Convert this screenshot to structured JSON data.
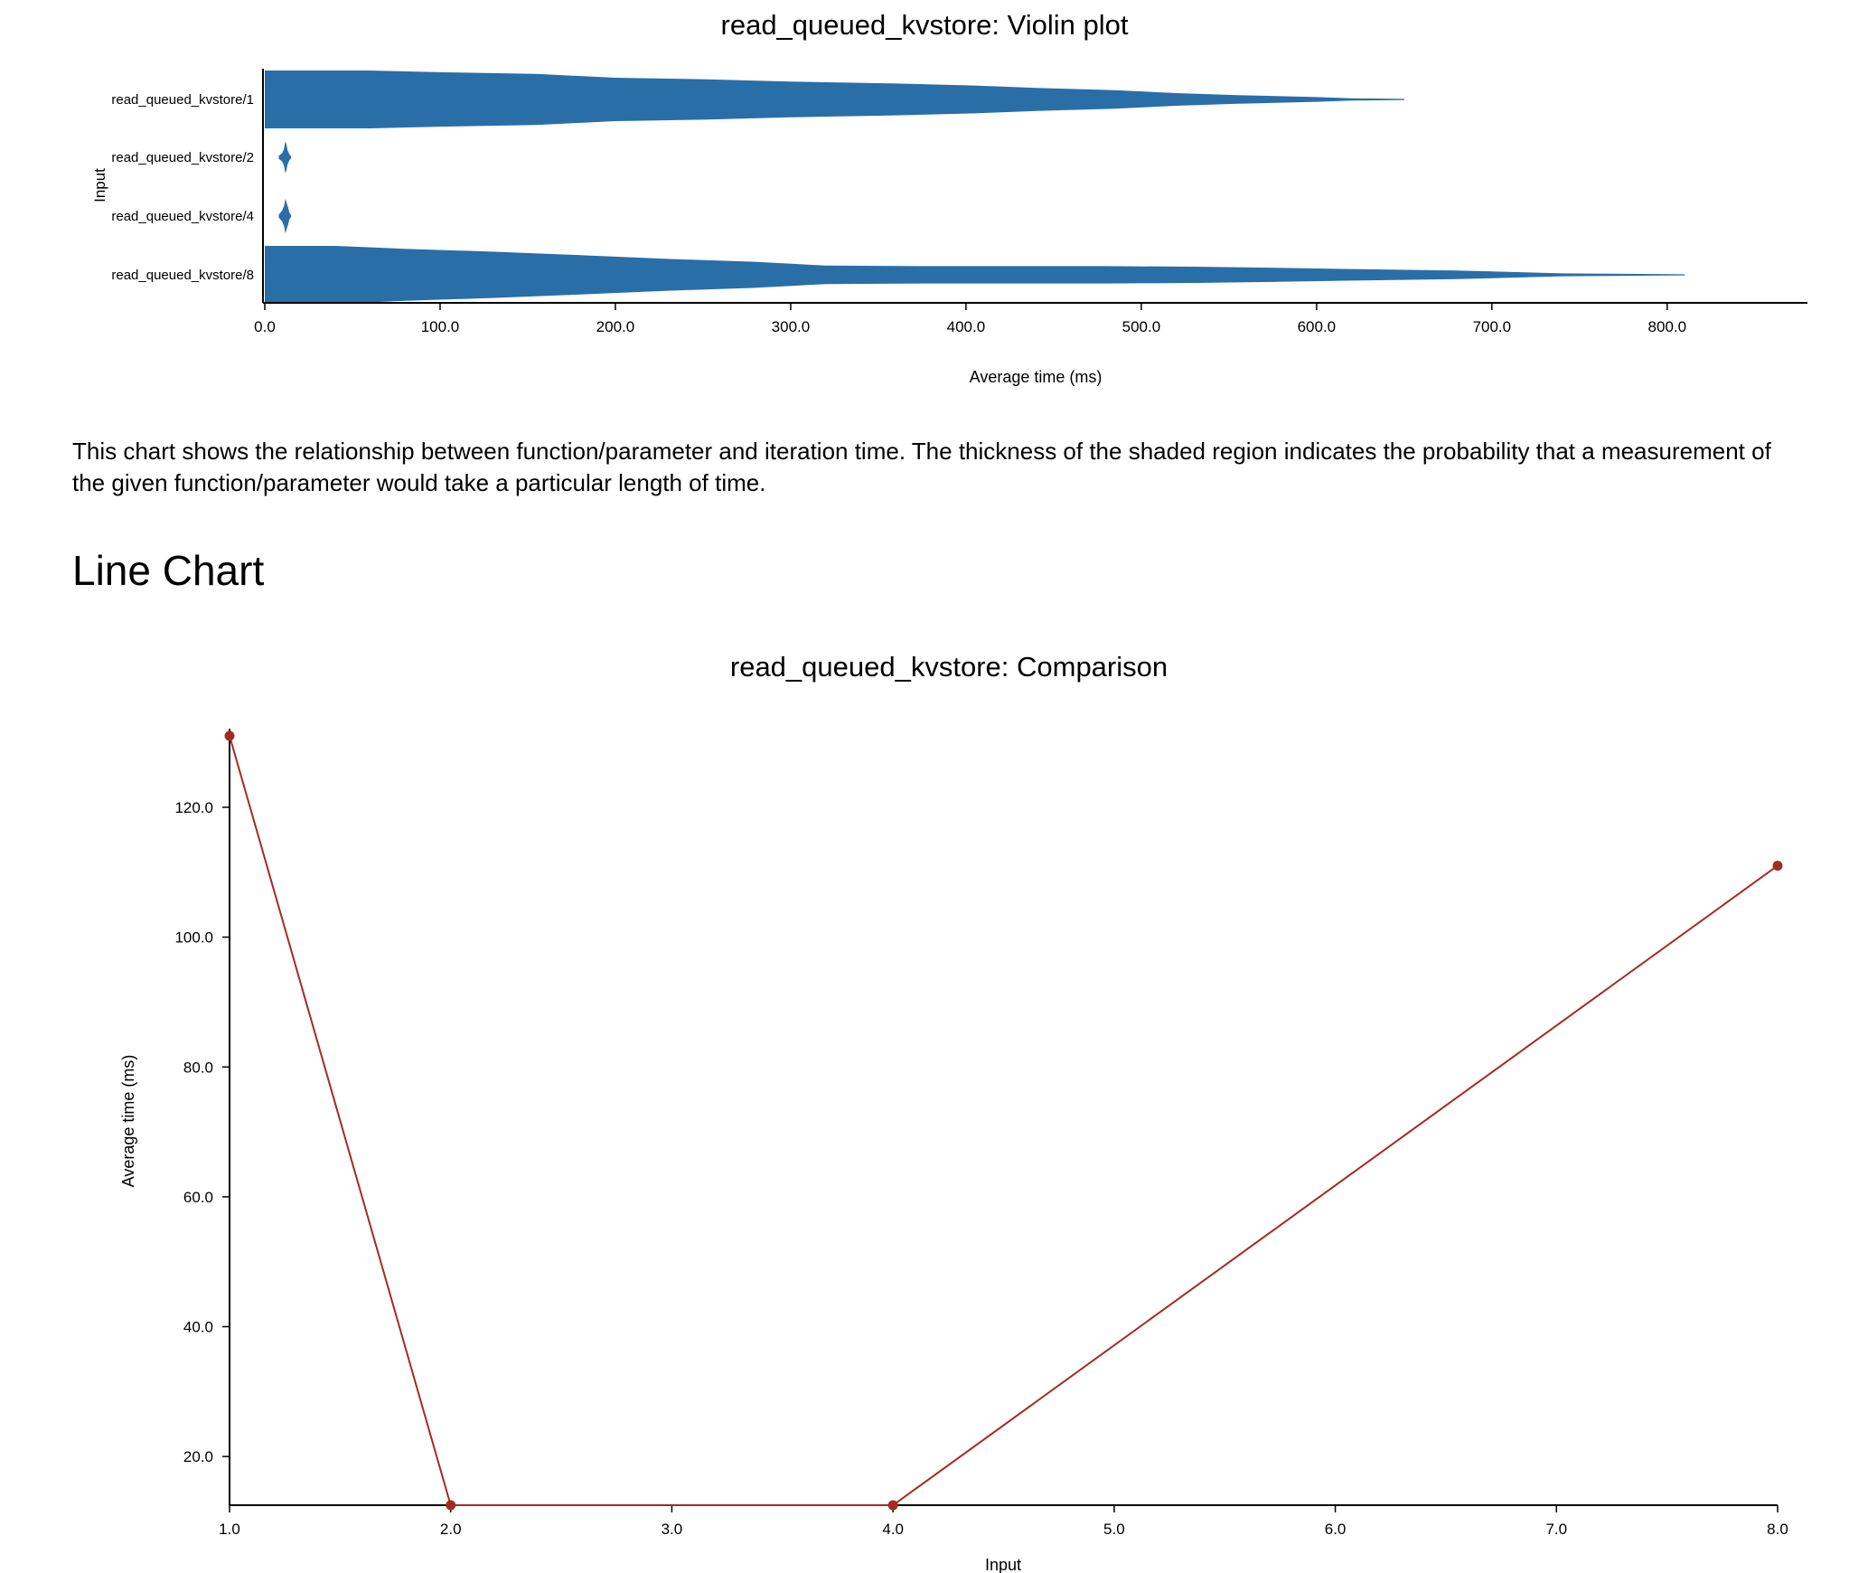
{
  "description": "This chart shows the relationship between function/parameter and iteration time. The thickness of the shaded region indicates the probability that a measurement of the given function/parameter would take a particular length of time.",
  "section_title": "Line Chart",
  "colors": {
    "violin": "#2a6ea8",
    "line": "#a52a22",
    "axis": "#000000"
  },
  "chart_data": [
    {
      "type": "violin",
      "orientation": "horizontal",
      "title": "read_queued_kvstore: Violin plot",
      "xlabel": "Average time (ms)",
      "ylabel": "Input",
      "xlim": [
        0,
        880
      ],
      "xticks": [
        "0.0",
        "100.0",
        "200.0",
        "300.0",
        "400.0",
        "500.0",
        "600.0",
        "700.0",
        "800.0"
      ],
      "grid": false,
      "categories": [
        "read_queued_kvstore/1",
        "read_queued_kvstore/2",
        "read_queued_kvstore/4",
        "read_queued_kvstore/8"
      ],
      "series": [
        {
          "category": "read_queued_kvstore/1",
          "density": [
            [
              0,
              1.0
            ],
            [
              22,
              1.0
            ],
            [
              60,
              1.0
            ],
            [
              100,
              0.94
            ],
            [
              155,
              0.88
            ],
            [
              200,
              0.75
            ],
            [
              250,
              0.7
            ],
            [
              300,
              0.62
            ],
            [
              360,
              0.55
            ],
            [
              405,
              0.48
            ],
            [
              440,
              0.4
            ],
            [
              485,
              0.32
            ],
            [
              520,
              0.22
            ],
            [
              555,
              0.15
            ],
            [
              600,
              0.08
            ],
            [
              620,
              0.04
            ],
            [
              650,
              0.02
            ]
          ]
        },
        {
          "category": "read_queued_kvstore/2",
          "density": [
            [
              8,
              0.05
            ],
            [
              10,
              0.15
            ],
            [
              11,
              0.3
            ],
            [
              11.7,
              0.55
            ],
            [
              12.3,
              0.45
            ],
            [
              13,
              0.25
            ],
            [
              14,
              0.1
            ],
            [
              15,
              0.03
            ]
          ]
        },
        {
          "category": "read_queued_kvstore/4",
          "density": [
            [
              8,
              0.05
            ],
            [
              10,
              0.2
            ],
            [
              11,
              0.35
            ],
            [
              11.8,
              0.6
            ],
            [
              12.5,
              0.45
            ],
            [
              13.3,
              0.3
            ],
            [
              14,
              0.12
            ],
            [
              15,
              0.03
            ]
          ]
        },
        {
          "category": "read_queued_kvstore/8",
          "density": [
            [
              0,
              1.0
            ],
            [
              40,
              1.0
            ],
            [
              80,
              0.9
            ],
            [
              130,
              0.8
            ],
            [
              180,
              0.68
            ],
            [
              230,
              0.55
            ],
            [
              280,
              0.45
            ],
            [
              320,
              0.32
            ],
            [
              380,
              0.3
            ],
            [
              440,
              0.3
            ],
            [
              480,
              0.3
            ],
            [
              530,
              0.28
            ],
            [
              570,
              0.25
            ],
            [
              620,
              0.2
            ],
            [
              680,
              0.15
            ],
            [
              740,
              0.05
            ],
            [
              810,
              0.02
            ]
          ]
        }
      ]
    },
    {
      "type": "line",
      "title": "read_queued_kvstore: Comparison",
      "xlabel": "Input",
      "ylabel": "Average time (ms)",
      "xlim": [
        1,
        8
      ],
      "ylim": [
        12.5,
        131
      ],
      "xticks": [
        "1.0",
        "2.0",
        "3.0",
        "4.0",
        "5.0",
        "6.0",
        "7.0",
        "8.0"
      ],
      "yticks": [
        "20.0",
        "40.0",
        "60.0",
        "80.0",
        "100.0",
        "120.0"
      ],
      "grid": false,
      "x": [
        1,
        2,
        4,
        8
      ],
      "values": [
        131,
        12.5,
        12.5,
        111
      ]
    }
  ]
}
